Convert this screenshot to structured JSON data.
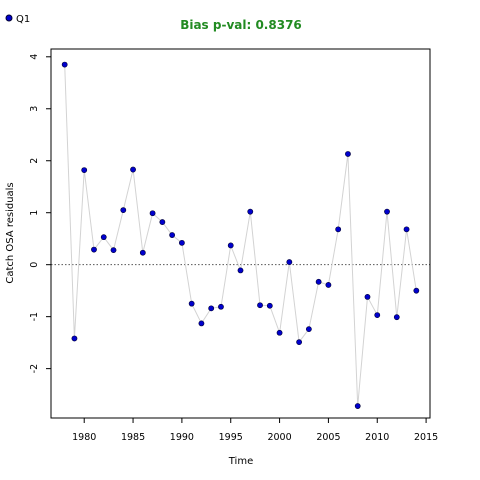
{
  "chart_data": {
    "type": "scatter",
    "title": "Bias p-val: 0.8376",
    "title_color": "#228B22",
    "xlabel": "Time",
    "ylabel": "Catch OSA residuals",
    "xlim": [
      1976.6,
      2015.4
    ],
    "ylim": [
      -2.95,
      4.15
    ],
    "x_ticks": [
      1980,
      1985,
      1990,
      1995,
      2000,
      2005,
      2010,
      2015
    ],
    "y_ticks": [
      -2,
      -1,
      0,
      1,
      2,
      3,
      4
    ],
    "reference_line": {
      "y": 0,
      "style": "dotted",
      "color": "#555555"
    },
    "connecting_line_color": "#d3d3d3",
    "grid": false,
    "legend_position": "top-left",
    "series": [
      {
        "name": "Q1",
        "color": "#0000CD",
        "x": [
          1978,
          1979,
          1980,
          1981,
          1982,
          1983,
          1984,
          1985,
          1986,
          1987,
          1988,
          1989,
          1990,
          1991,
          1992,
          1993,
          1994,
          1995,
          1996,
          1997,
          1998,
          1999,
          2000,
          2001,
          2002,
          2003,
          2004,
          2005,
          2006,
          2007,
          2008,
          2009,
          2010,
          2011,
          2012,
          2013,
          2014
        ],
        "y": [
          3.85,
          -1.42,
          1.82,
          0.29,
          0.53,
          0.28,
          1.05,
          1.83,
          0.23,
          0.99,
          0.82,
          0.57,
          0.42,
          -0.75,
          -1.13,
          -0.84,
          -0.81,
          0.37,
          -0.11,
          1.02,
          -0.78,
          -0.79,
          -1.31,
          0.05,
          -1.49,
          -1.24,
          -0.33,
          -0.39,
          0.68,
          2.13,
          -2.72,
          -0.62,
          -0.97,
          1.02,
          -1.01,
          0.68,
          -0.5
        ]
      }
    ]
  }
}
